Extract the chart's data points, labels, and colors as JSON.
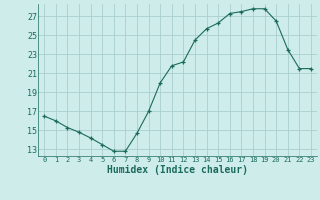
{
  "x": [
    0,
    1,
    2,
    3,
    4,
    5,
    6,
    7,
    8,
    9,
    10,
    11,
    12,
    13,
    14,
    15,
    16,
    17,
    18,
    19,
    20,
    21,
    22,
    23
  ],
  "y": [
    16.5,
    16.0,
    15.3,
    14.8,
    14.2,
    13.5,
    12.8,
    12.8,
    14.7,
    17.0,
    20.0,
    21.8,
    22.2,
    24.5,
    25.7,
    26.3,
    27.3,
    27.5,
    27.8,
    27.8,
    26.5,
    23.5,
    21.5,
    21.5
  ],
  "xlabel": "Humidex (Indice chaleur)",
  "bg_color": "#ceecea",
  "grid_color": "#aacfcc",
  "line_color": "#1a6b5a",
  "yticks": [
    13,
    15,
    17,
    19,
    21,
    23,
    25,
    27
  ],
  "xtick_labels": [
    "0",
    "1",
    "2",
    "3",
    "4",
    "5",
    "6",
    "7",
    "8",
    "9",
    "10",
    "11",
    "12",
    "13",
    "14",
    "15",
    "16",
    "17",
    "18",
    "19",
    "20",
    "21",
    "22",
    "23"
  ],
  "ylim": [
    12.3,
    28.3
  ],
  "xlim": [
    -0.5,
    23.5
  ]
}
